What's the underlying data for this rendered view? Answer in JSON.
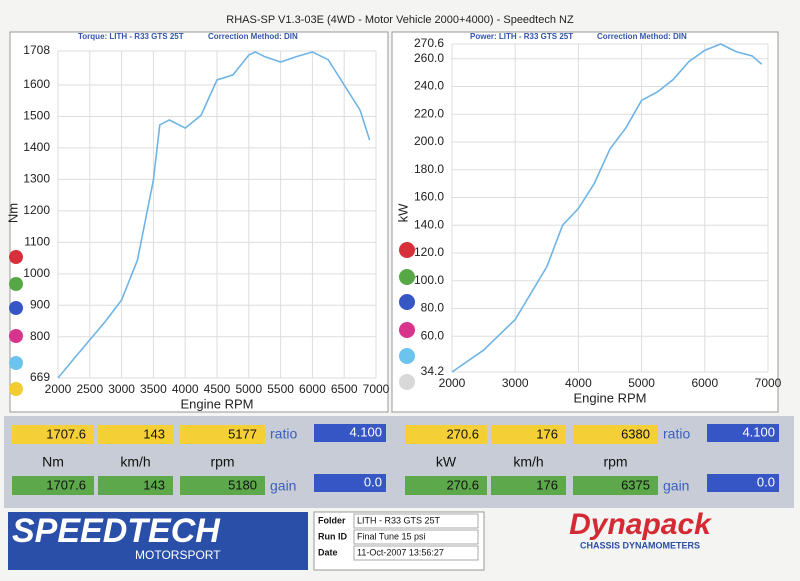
{
  "header": {
    "title": "RHAS-SP V1.3-03E  (4WD - Motor Vehicle 2000+4000) - Speedtech NZ"
  },
  "chart_data": [
    {
      "type": "line",
      "title": "Torque: LITH - R33 GTS 25T",
      "subtitle": "Correction Method: DIN",
      "x_label": "Engine RPM",
      "y_label": "Nm",
      "color": "#6fb4e6",
      "grid": true,
      "x": [
        2000,
        2250,
        2500,
        2750,
        3000,
        3250,
        3500,
        3600,
        3750,
        4000,
        4250,
        4500,
        4750,
        5000,
        5100,
        5250,
        5500,
        5750,
        6000,
        6250,
        6500,
        6750,
        6900
      ],
      "values": [
        669,
        730,
        790,
        850,
        917,
        1044,
        1298,
        1473,
        1489,
        1463,
        1504,
        1616,
        1632,
        1695,
        1705,
        1690,
        1673,
        1690,
        1705,
        1680,
        1600,
        1520,
        1425
      ],
      "xlim": [
        2000,
        7000
      ],
      "xticks": [
        2000,
        2500,
        3000,
        3500,
        4000,
        4500,
        5000,
        5500,
        6000,
        6500,
        7000
      ],
      "ylim": [
        669,
        1708
      ],
      "yticks": [
        669,
        800,
        900,
        1000,
        1100,
        1200,
        1300,
        1400,
        1500,
        1600,
        1708
      ]
    },
    {
      "type": "line",
      "title": "Power: LITH - R33 GTS 25T",
      "subtitle": "Correction Method: DIN",
      "x_label": "Engine RPM",
      "y_label": "kW",
      "color": "#6fb4e6",
      "grid": true,
      "x": [
        2000,
        2500,
        3000,
        3500,
        3750,
        4000,
        4250,
        4500,
        4750,
        5000,
        5250,
        5500,
        5750,
        6000,
        6250,
        6500,
        6750,
        6900
      ],
      "values": [
        34.2,
        50,
        72,
        110,
        140,
        152,
        170,
        195,
        210,
        230,
        236,
        245,
        258,
        266,
        270.6,
        265,
        262,
        256
      ],
      "xlim": [
        2000,
        7000
      ],
      "xticks": [
        2000,
        3000,
        4000,
        5000,
        6000,
        7000
      ],
      "ylim": [
        34.2,
        270.6
      ],
      "yticks": [
        34.2,
        {
          "value": 60,
          "label": "60.0"
        },
        {
          "value": 80,
          "label": "80.0"
        },
        {
          "value": 100,
          "label": "100.0"
        },
        {
          "value": 120,
          "label": "120.0"
        },
        {
          "value": 140,
          "label": "140.0"
        },
        {
          "value": 160,
          "label": "160.0"
        },
        {
          "value": 180,
          "label": "180.0"
        },
        {
          "value": 200,
          "label": "200.0"
        },
        {
          "value": 220,
          "label": "220.0"
        },
        {
          "value": 240,
          "label": "240.0"
        },
        {
          "value": 260,
          "label": "260.0"
        },
        270.6
      ]
    }
  ],
  "readout": [
    {
      "peak": [
        "1707.6",
        "143",
        "5177"
      ],
      "ratio_label": "ratio",
      "ratio": "4.100",
      "units": [
        "Nm",
        "km/h",
        "rpm"
      ],
      "current": [
        "1707.6",
        "143",
        "5180"
      ],
      "gain_label": "gain",
      "gain": "0.0"
    },
    {
      "peak": [
        "270.6",
        "176",
        "6380"
      ],
      "ratio_label": "ratio",
      "ratio": "4.100",
      "units": [
        "kW",
        "km/h",
        "rpm"
      ],
      "current": [
        "270.6",
        "176",
        "6375"
      ],
      "gain_label": "gain",
      "gain": "0.0"
    }
  ],
  "footer": {
    "speedtech": "SPEEDTECH",
    "motorsport": "MOTORSPORT",
    "info": [
      [
        "Folder",
        "LITH - R33 GTS 25T"
      ],
      [
        "Run ID",
        "Final Tune 15 psi"
      ],
      [
        "Date",
        "11-Oct-2007  13:56:27"
      ]
    ],
    "dynapack": "Dynapack",
    "dynapack_sub": "CHASSIS  DYNAMOMETERS"
  }
}
